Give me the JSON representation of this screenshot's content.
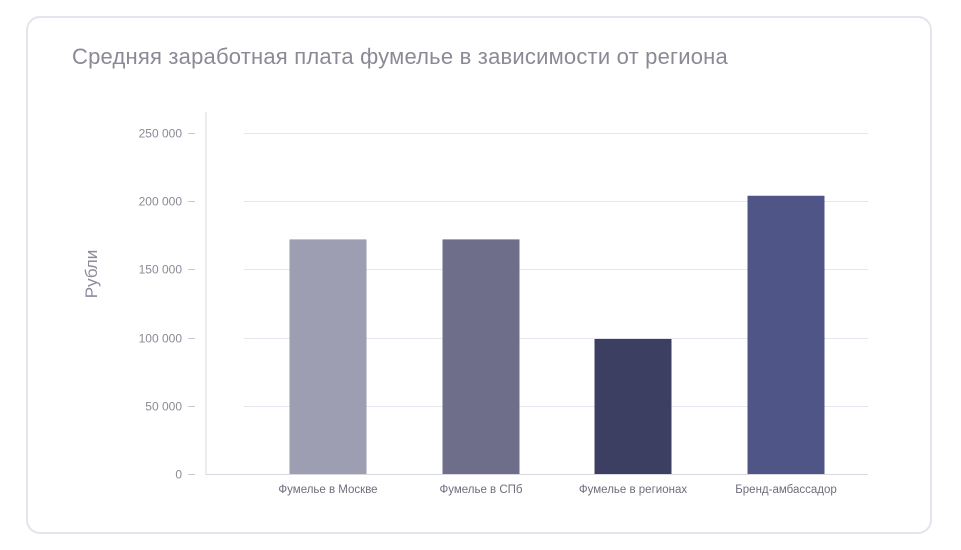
{
  "chart_data": {
    "type": "bar",
    "title": "Средняя заработная плата фумелье в зависимости от региона",
    "ylabel": "Рубли",
    "xlabel": "",
    "categories": [
      "Фумелье в Москве",
      "Фумелье в СПб",
      "Фумелье в регионах",
      "Бренд-амбассадор"
    ],
    "values": [
      172000,
      172000,
      99000,
      204000
    ],
    "bar_colors": [
      "#9e9eb2",
      "#6e6e8a",
      "#3d3f62",
      "#505587"
    ],
    "ylim": [
      0,
      250000
    ],
    "yticks": [
      0,
      50000,
      100000,
      150000,
      200000,
      250000
    ],
    "ytick_labels": [
      "0",
      "50 000",
      "100 000",
      "150 000",
      "200 000",
      "250 000"
    ],
    "grid": true,
    "legend": "none"
  }
}
